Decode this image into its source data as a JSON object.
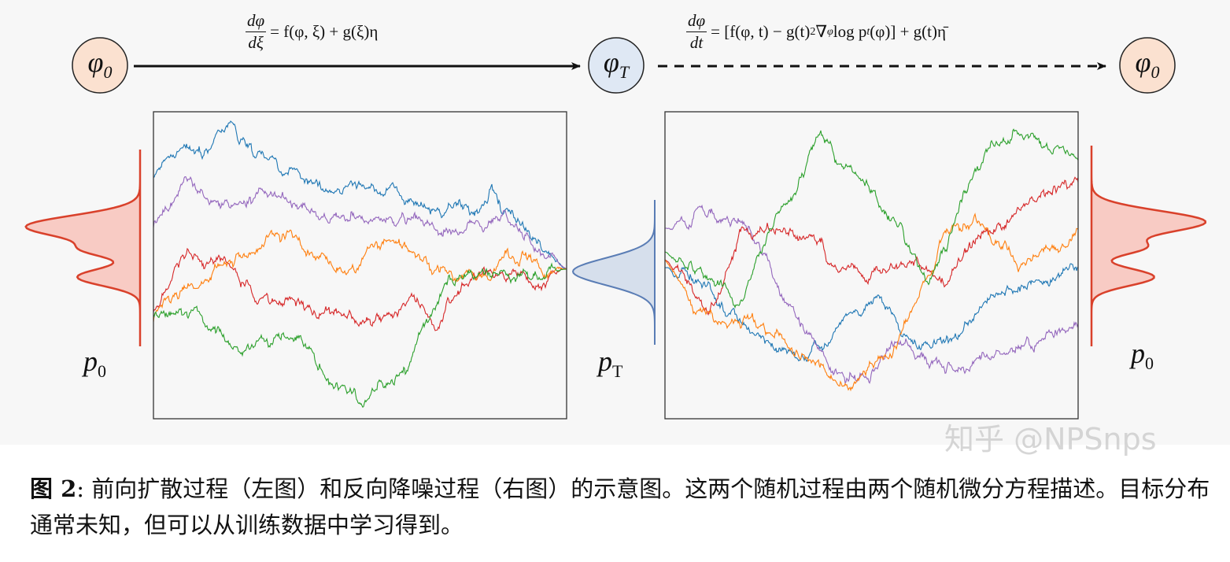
{
  "figure": {
    "nodes": {
      "start": {
        "symbol": "φ",
        "sub": "0"
      },
      "middle": {
        "symbol": "φ",
        "sub": "T"
      },
      "end": {
        "symbol": "φ",
        "sub": "0"
      }
    },
    "forward_equation": {
      "num": "dφ",
      "den": "dξ",
      "rhs": "= f(φ, ξ) + g(ξ)η"
    },
    "reverse_equation": {
      "num": "dφ",
      "den": "dt",
      "rhs_a": "= [f(φ, t)  − g(t)",
      "sup": "2",
      "rhs_b": "∇",
      "sub1": "φ",
      "rhs_c": "log p",
      "sub2": "t",
      "rhs_d": "(φ)] + g(t)η̄"
    },
    "distribution_labels": {
      "left": {
        "symbol": "p",
        "sub": "0"
      },
      "middle": {
        "symbol": "p",
        "sub": "T"
      },
      "right": {
        "symbol": "p",
        "sub": "0"
      }
    },
    "colors": {
      "node_start": "#fbe1d0",
      "node_middle": "#dfe8f4",
      "data_dist_fill": "#f8cbc4",
      "data_dist_line": "#d9412b",
      "noise_dist_fill": "#d6dfec",
      "noise_dist_line": "#5a7db5",
      "series": [
        "#1f77b4",
        "#9467bd",
        "#d62728",
        "#ff7f0e",
        "#2ca02c"
      ]
    }
  },
  "caption": {
    "label": "图 2",
    "text": ": 前向扩散过程（左图）和反向降噪过程（右图）的示意图。这两个随机过程由两个随机微分方程描述。目标分布通常未知，但可以从训练数据中学习得到。"
  },
  "watermark": "知乎 @NPSnps"
}
